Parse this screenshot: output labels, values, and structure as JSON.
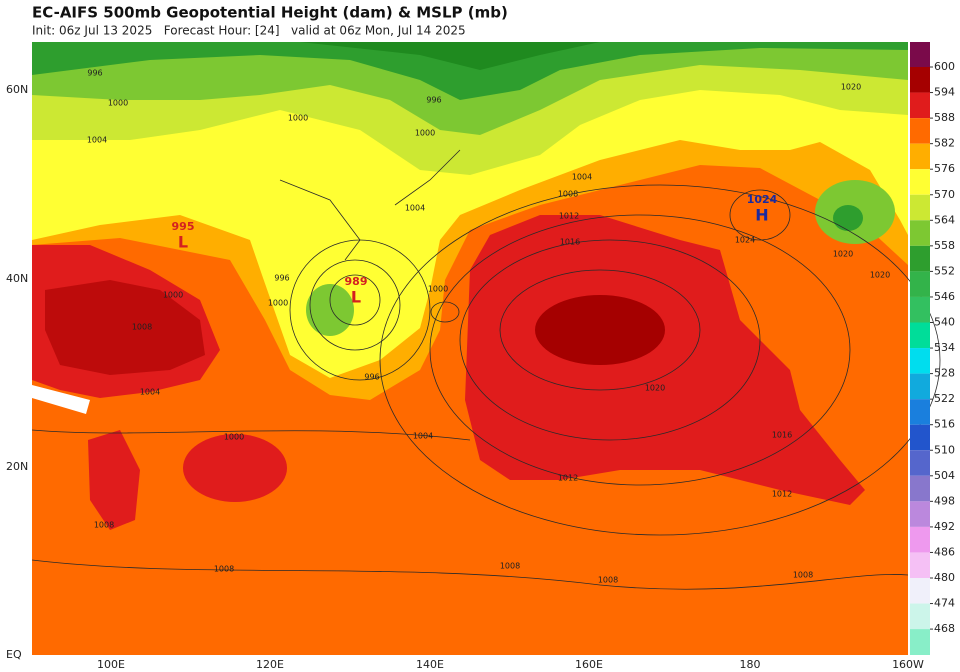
{
  "header": {
    "title": "EC-AIFS 500mb Geopotential Height (dam) & MSLP (mb)",
    "subtitle": "Init: 06z Jul 13 2025   Forecast Hour: [24]   valid at 06z Mon, Jul 14 2025"
  },
  "map": {
    "lat_labels": [
      "60N",
      "40N",
      "20N",
      "EQ"
    ],
    "lon_labels": [
      "100E",
      "120E",
      "140E",
      "160E",
      "180",
      "160W"
    ],
    "isobar_labels": [
      996,
      1000,
      1004,
      1000,
      1000,
      996,
      1004,
      1008,
      1012,
      1016,
      1004,
      1000,
      996,
      1000,
      996,
      1000,
      1008,
      1004,
      1000,
      1004,
      1012,
      1020,
      1016,
      1012,
      1020,
      1020,
      1020,
      1024,
      1008,
      1008,
      1008,
      1008,
      1008
    ],
    "centers": [
      {
        "symbol": "L",
        "value": 995,
        "color": "#d42020"
      },
      {
        "symbol": "L",
        "value": 989,
        "color": "#d42020"
      },
      {
        "symbol": "H",
        "value": 1024,
        "color": "#1a2aa0"
      }
    ]
  },
  "colorbar": {
    "levels": [
      600,
      594,
      588,
      582,
      576,
      570,
      564,
      558,
      552,
      546,
      540,
      534,
      528,
      522,
      516,
      510,
      504,
      498,
      492,
      486,
      480,
      474,
      468
    ],
    "colors": [
      "#7a0a4a",
      "#a50000",
      "#e01c1c",
      "#ff6a00",
      "#ffae00",
      "#ffff33",
      "#cce833",
      "#7dc832",
      "#2e9e2e",
      "#33b34a",
      "#33c060",
      "#00dd99",
      "#00ddee",
      "#11aadd",
      "#1a7fdd",
      "#2255cc",
      "#5566cc",
      "#8877cc",
      "#bb88dd",
      "#ee99ee",
      "#f5c0f5",
      "#f0f0fa",
      "#ccf5ea",
      "#88eec8"
    ]
  }
}
